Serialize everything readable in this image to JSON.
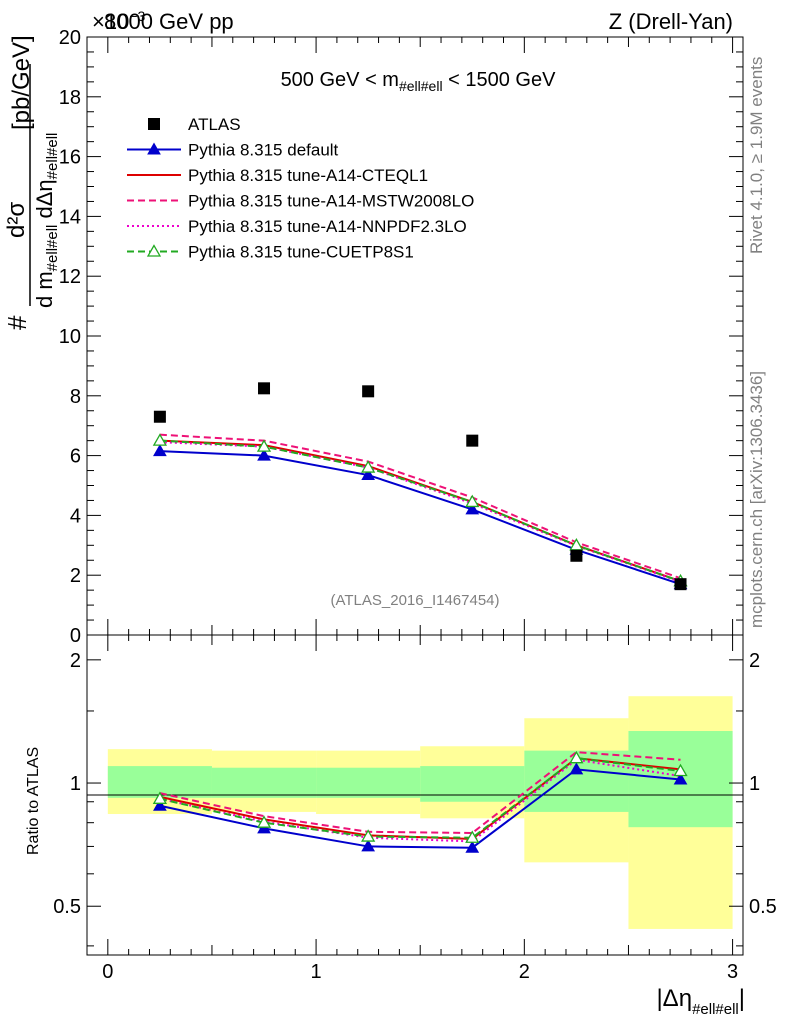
{
  "header": {
    "left": "8000 GeV pp",
    "exponent": "×10",
    "exponent_power": "−3",
    "right": "Z (Drell-Yan)"
  },
  "side": {
    "rivet": "Rivet 4.1.0, ≥ 1.9M events",
    "mcplots": "mcplots.cern.ch [arXiv:1306.3436]"
  },
  "main": {
    "ylabel": "#  d²σ / d m_#ell#ell dΔη_#ell#ell  [pb/GeV]",
    "ylabel_unit": "[pb/GeV]",
    "title": "500 GeV < m_{#ell#ell} < 1500 GeV",
    "watermark": "(ATLAS_2016_I1467454)"
  },
  "ratio": {
    "ylabel": "Ratio to ATLAS"
  },
  "xaxis_label": "|Δη_#ell#ell|",
  "legend": [
    {
      "label": "ATLAS"
    },
    {
      "label": "Pythia 8.315 default"
    },
    {
      "label": "Pythia 8.315 tune-A14-CTEQL1"
    },
    {
      "label": "Pythia 8.315 tune-A14-MSTW2008LO"
    },
    {
      "label": "Pythia 8.315 tune-A14-NNPDF2.3LO"
    },
    {
      "label": "Pythia 8.315 tune-CUETP8S1"
    }
  ],
  "chart_data": [
    {
      "type": "line",
      "title": "500 GeV < m_{#ell#ell} < 1500 GeV",
      "xlabel": "|Δη_#ell#ell|",
      "ylabel": "# d²σ / d m_#ell#ell dΔη_#ell#ell [pb/GeV] (×10⁻³)",
      "xlim": [
        -0.1,
        3.05
      ],
      "ylim": [
        0,
        20
      ],
      "yticks": [
        0,
        2,
        4,
        6,
        8,
        10,
        12,
        14,
        16,
        18,
        20
      ],
      "x": [
        0.25,
        0.75,
        1.25,
        1.75,
        2.25,
        2.75
      ],
      "bin_edges": [
        0,
        0.5,
        1.0,
        1.5,
        2.0,
        2.5,
        3.0
      ],
      "series": [
        {
          "name": "ATLAS",
          "style": "marker",
          "color": "#000000",
          "values": [
            7.3,
            8.25,
            8.15,
            6.5,
            2.65,
            1.7
          ]
        },
        {
          "name": "Pythia 8.315 default",
          "style": "solid-triangle",
          "color": "#0000cc",
          "values": [
            6.15,
            6.0,
            5.35,
            4.2,
            2.85,
            1.7
          ]
        },
        {
          "name": "Pythia 8.315 tune-A14-CTEQL1",
          "style": "solid",
          "color": "#dd0000",
          "values": [
            6.5,
            6.35,
            5.65,
            4.45,
            3.0,
            1.8
          ]
        },
        {
          "name": "Pythia 8.315 tune-A14-MSTW2008LO",
          "style": "dashed",
          "color": "#ee1177",
          "values": [
            6.7,
            6.5,
            5.8,
            4.6,
            3.1,
            1.9
          ]
        },
        {
          "name": "Pythia 8.315 tune-A14-NNPDF2.3LO",
          "style": "dotted",
          "color": "#ee00cc",
          "values": [
            6.45,
            6.3,
            5.6,
            4.4,
            2.98,
            1.78
          ]
        },
        {
          "name": "Pythia 8.315 tune-CUETP8S1",
          "style": "dashed-open-triangle",
          "color": "#22aa22",
          "values": [
            6.5,
            6.3,
            5.6,
            4.45,
            3.0,
            1.8
          ]
        }
      ]
    },
    {
      "type": "line",
      "xlabel": "|Δη_#ell#ell|",
      "ylabel": "Ratio to ATLAS",
      "xlim": [
        -0.1,
        3.05
      ],
      "ylim": [
        0.38,
        2.3
      ],
      "yscale": "log",
      "yticks": [
        0.5,
        1,
        2
      ],
      "xticks": [
        0,
        1,
        2,
        3
      ],
      "bands": {
        "bin_edges": [
          0,
          0.5,
          1.0,
          1.5,
          2.0,
          2.5,
          3.0
        ],
        "yellow": [
          [
            0.84,
            1.21
          ],
          [
            0.85,
            1.2
          ],
          [
            0.84,
            1.2
          ],
          [
            0.82,
            1.23
          ],
          [
            0.64,
            1.44
          ],
          [
            0.44,
            1.63
          ]
        ],
        "green": [
          [
            0.92,
            1.1
          ],
          [
            0.92,
            1.09
          ],
          [
            0.92,
            1.09
          ],
          [
            0.9,
            1.1
          ],
          [
            0.85,
            1.2
          ],
          [
            0.78,
            1.34
          ]
        ]
      },
      "x": [
        0.25,
        0.75,
        1.25,
        1.75,
        2.25,
        2.75
      ],
      "series": [
        {
          "name": "Pythia 8.315 default",
          "color": "#0000cc",
          "style": "solid-triangle",
          "values": [
            0.88,
            0.775,
            0.7,
            0.695,
            1.08,
            1.02
          ]
        },
        {
          "name": "Pythia 8.315 tune-A14-CTEQL1",
          "color": "#dd0000",
          "style": "solid",
          "values": [
            0.925,
            0.815,
            0.745,
            0.73,
            1.15,
            1.08
          ]
        },
        {
          "name": "Pythia 8.315 tune-A14-MSTW2008LO",
          "color": "#ee1177",
          "style": "dashed",
          "values": [
            0.945,
            0.83,
            0.76,
            0.755,
            1.19,
            1.14
          ]
        },
        {
          "name": "Pythia 8.315 tune-A14-NNPDF2.3LO",
          "color": "#ee00cc",
          "style": "dotted",
          "values": [
            0.915,
            0.805,
            0.735,
            0.72,
            1.14,
            1.04
          ]
        },
        {
          "name": "Pythia 8.315 tune-CUETP8S1",
          "color": "#22aa22",
          "style": "dashed-open-triangle",
          "values": [
            0.915,
            0.8,
            0.74,
            0.735,
            1.15,
            1.07
          ]
        }
      ]
    }
  ]
}
